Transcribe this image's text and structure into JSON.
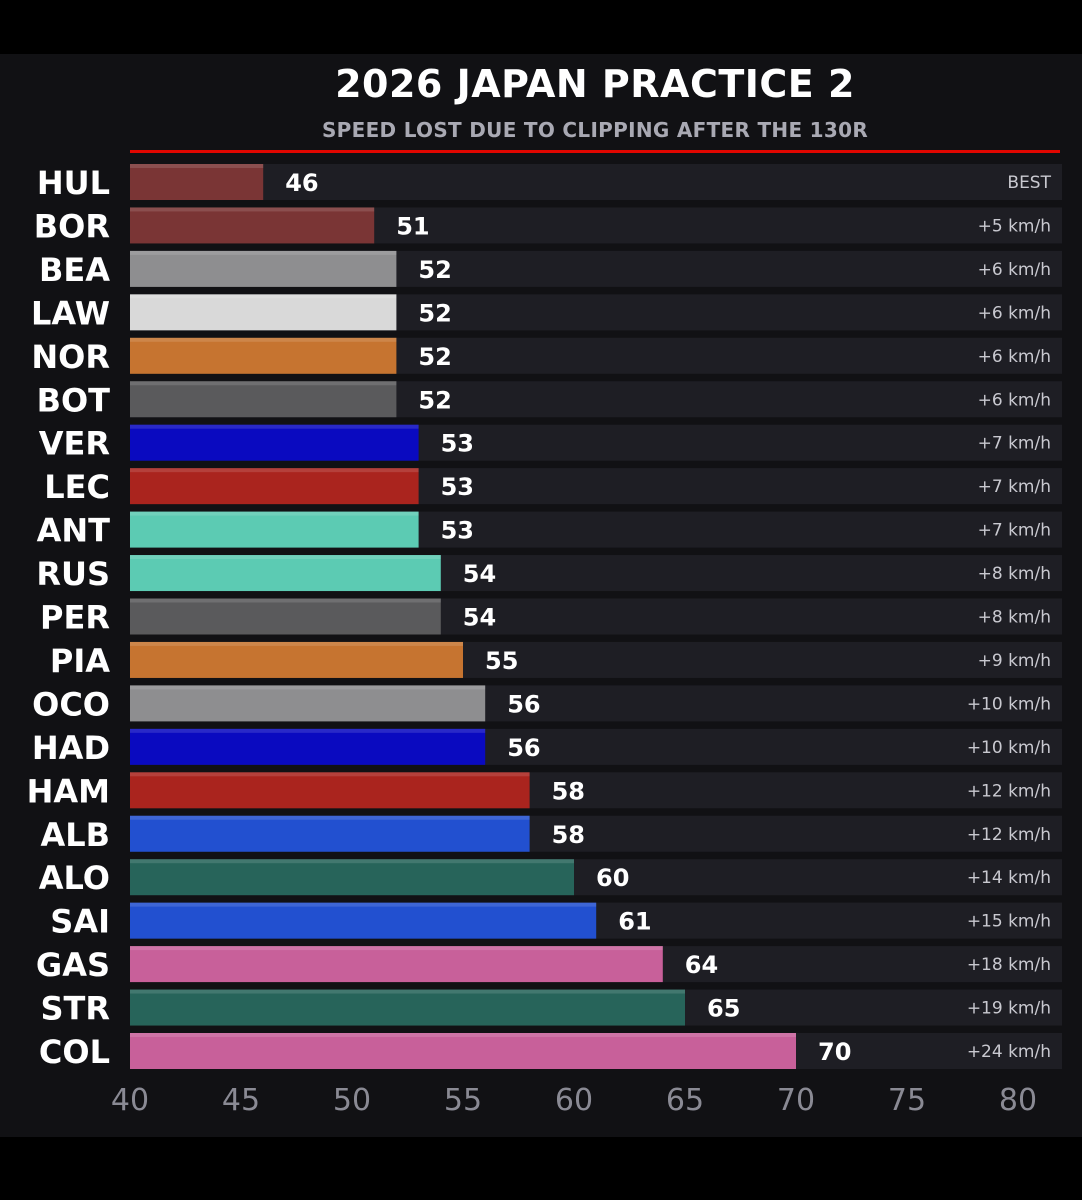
{
  "chart_data": {
    "type": "bar",
    "orientation": "horizontal",
    "title": "2026 JAPAN PRACTICE 2",
    "subtitle": "SPEED LOST DUE TO CLIPPING AFTER THE 130R",
    "xlim": [
      40,
      80
    ],
    "x_ticks": [
      "40",
      "45",
      "50",
      "55",
      "60",
      "65",
      "70",
      "75",
      "80"
    ],
    "accent_color": "#e10600",
    "categories": [
      "HUL",
      "BOR",
      "BEA",
      "LAW",
      "NOR",
      "BOT",
      "VER",
      "LEC",
      "ANT",
      "RUS",
      "PER",
      "PIA",
      "OCO",
      "HAD",
      "HAM",
      "ALB",
      "ALO",
      "SAI",
      "GAS",
      "STR",
      "COL"
    ],
    "values": [
      46,
      51,
      52,
      52,
      52,
      52,
      53,
      53,
      53,
      54,
      54,
      55,
      56,
      56,
      58,
      58,
      60,
      61,
      64,
      65,
      70
    ],
    "value_labels": [
      "46",
      "51",
      "52",
      "52",
      "52",
      "52",
      "53",
      "53",
      "53",
      "54",
      "54",
      "55",
      "56",
      "56",
      "58",
      "58",
      "60",
      "61",
      "64",
      "65",
      "70"
    ],
    "deltas": [
      "BEST",
      "+5 km/h",
      "+6 km/h",
      "+6 km/h",
      "+6 km/h",
      "+6 km/h",
      "+7 km/h",
      "+7 km/h",
      "+7 km/h",
      "+8 km/h",
      "+8 km/h",
      "+9 km/h",
      "+10 km/h",
      "+10 km/h",
      "+12 km/h",
      "+12 km/h",
      "+14 km/h",
      "+15 km/h",
      "+18 km/h",
      "+19 km/h",
      "+24 km/h"
    ],
    "colors": [
      "#7a3535",
      "#7a3535",
      "#8e8e90",
      "#d9d9d9",
      "#c67430",
      "#5a5a5c",
      "#0a0ac0",
      "#aa241e",
      "#5ccbb3",
      "#5ccbb3",
      "#5a5a5c",
      "#c67430",
      "#8e8e90",
      "#0a0ac0",
      "#aa241e",
      "#2250d0",
      "#27645a",
      "#2250d0",
      "#c8609a",
      "#27645a",
      "#c8609a"
    ],
    "grid": false
  }
}
